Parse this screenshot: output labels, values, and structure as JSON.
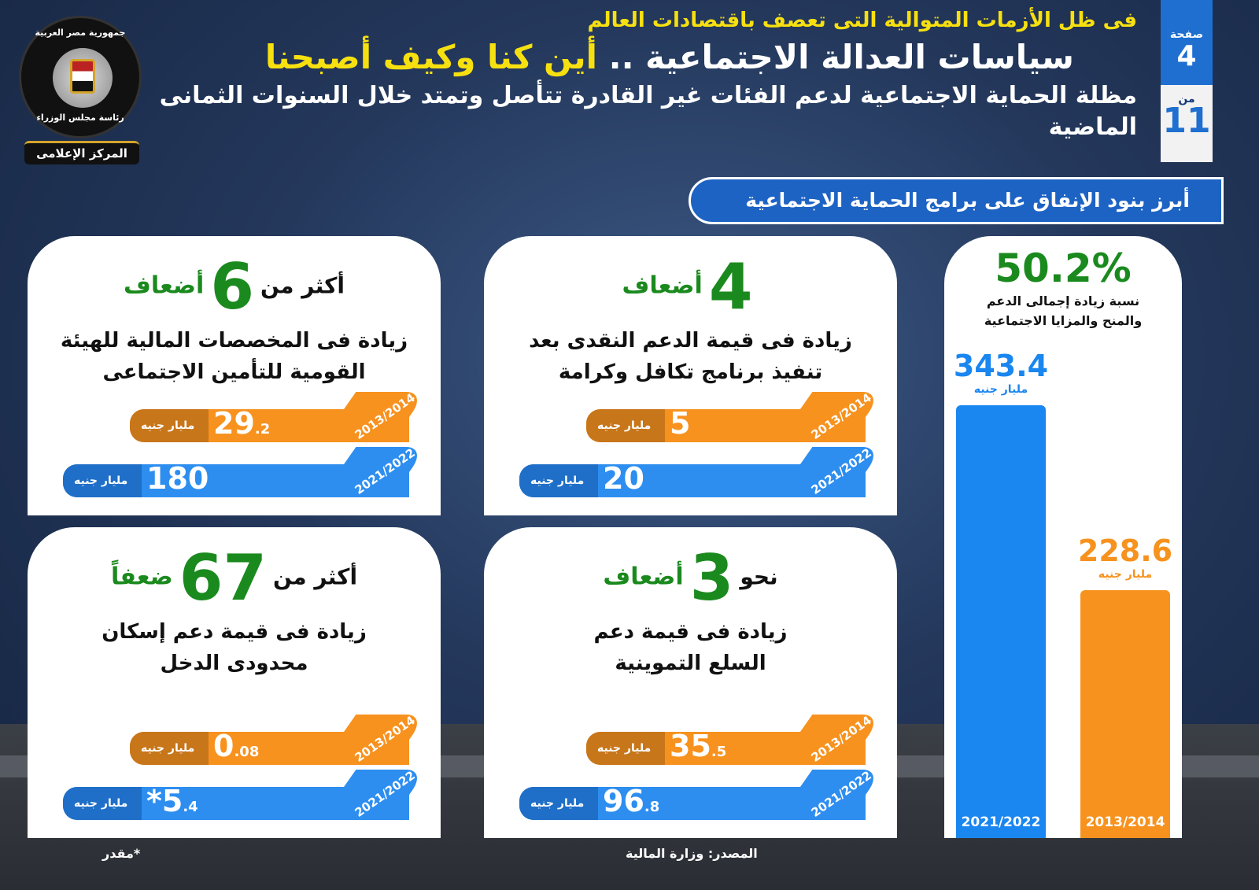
{
  "logo": {
    "top_text": "جمهورية مصر العربية",
    "bottom_text": "رئاسة مجلس الوزراء",
    "ribbon": "المركز الإعلامى"
  },
  "header": {
    "kicker": "فى ظل الأزمات المتوالية التى تعصف باقتصادات العالم",
    "title_white": "سياسات العدالة الاجتماعية ..",
    "title_yellow": "أين كنا وكيف أصبحنا",
    "subtitle": "مظلة الحماية الاجتماعية لدعم الفئات غير القادرة تتأصل وتمتد خلال السنوات الثمانى الماضية"
  },
  "page_badge": {
    "page_label": "صفحة",
    "page": "4",
    "of_label": "من",
    "total": "11"
  },
  "section_title": "أبرز بنود الإنفاق على برامج الحماية الاجتماعية",
  "cards": [
    {
      "prefix": "",
      "number": "4",
      "suffix": "أضعاف",
      "desc1": "زيادة فى قيمة الدعم النقدى بعد",
      "desc2": "تنفيذ برنامج تكافل وكرامة",
      "bars": [
        {
          "year": "2013/2014",
          "main": "5",
          "dec": "",
          "unit": "مليار جنيه"
        },
        {
          "year": "2021/2022",
          "main": "20",
          "dec": "",
          "unit": "مليار جنيه"
        }
      ]
    },
    {
      "prefix": "أكثر من",
      "number": "6",
      "suffix": "أضعاف",
      "desc1": "زيادة فى المخصصات المالية للهيئة",
      "desc2": "القومية للتأمين الاجتماعى",
      "bars": [
        {
          "year": "2013/2014",
          "main": "29",
          "dec": ".2",
          "unit": "مليار جنيه"
        },
        {
          "year": "2021/2022",
          "main": "180",
          "dec": "",
          "unit": "مليار جنيه"
        }
      ]
    },
    {
      "prefix": "نحو",
      "number": "3",
      "suffix": "أضعاف",
      "desc1": "زيادة فى قيمة دعم",
      "desc2": "السلع التموينية",
      "bars": [
        {
          "year": "2013/2014",
          "main": "35",
          "dec": ".5",
          "unit": "مليار جنيه"
        },
        {
          "year": "2021/2022",
          "main": "96",
          "dec": ".8",
          "unit": "مليار جنيه"
        }
      ]
    },
    {
      "prefix": "أكثر من",
      "number": "67",
      "suffix": "ضعفاً",
      "desc1": "زيادة فى قيمة دعم إسكان",
      "desc2": "محدودى الدخل",
      "bars": [
        {
          "year": "2013/2014",
          "main": "0",
          "dec": ".08",
          "unit": "مليار جنيه"
        },
        {
          "year": "2021/2022",
          "main": "*5",
          "dec": ".4",
          "unit": "مليار جنيه"
        }
      ]
    }
  ],
  "chart_data": {
    "type": "bar",
    "headline": "50.2%",
    "caption1": "نسبة زيادة إجمالى الدعم",
    "caption2": "والمنح والمزايا الاجتماعية",
    "categories": [
      "2021/2022",
      "2013/2014"
    ],
    "values": [
      343.4,
      228.6
    ],
    "value_labels": [
      "343.4",
      "228.6"
    ],
    "unit": "مليار جنيه",
    "colors": [
      "#1a86f0",
      "#f7921e"
    ]
  },
  "footer": {
    "source": "المصدر: وزارة المالية",
    "note": "*مقدر"
  }
}
